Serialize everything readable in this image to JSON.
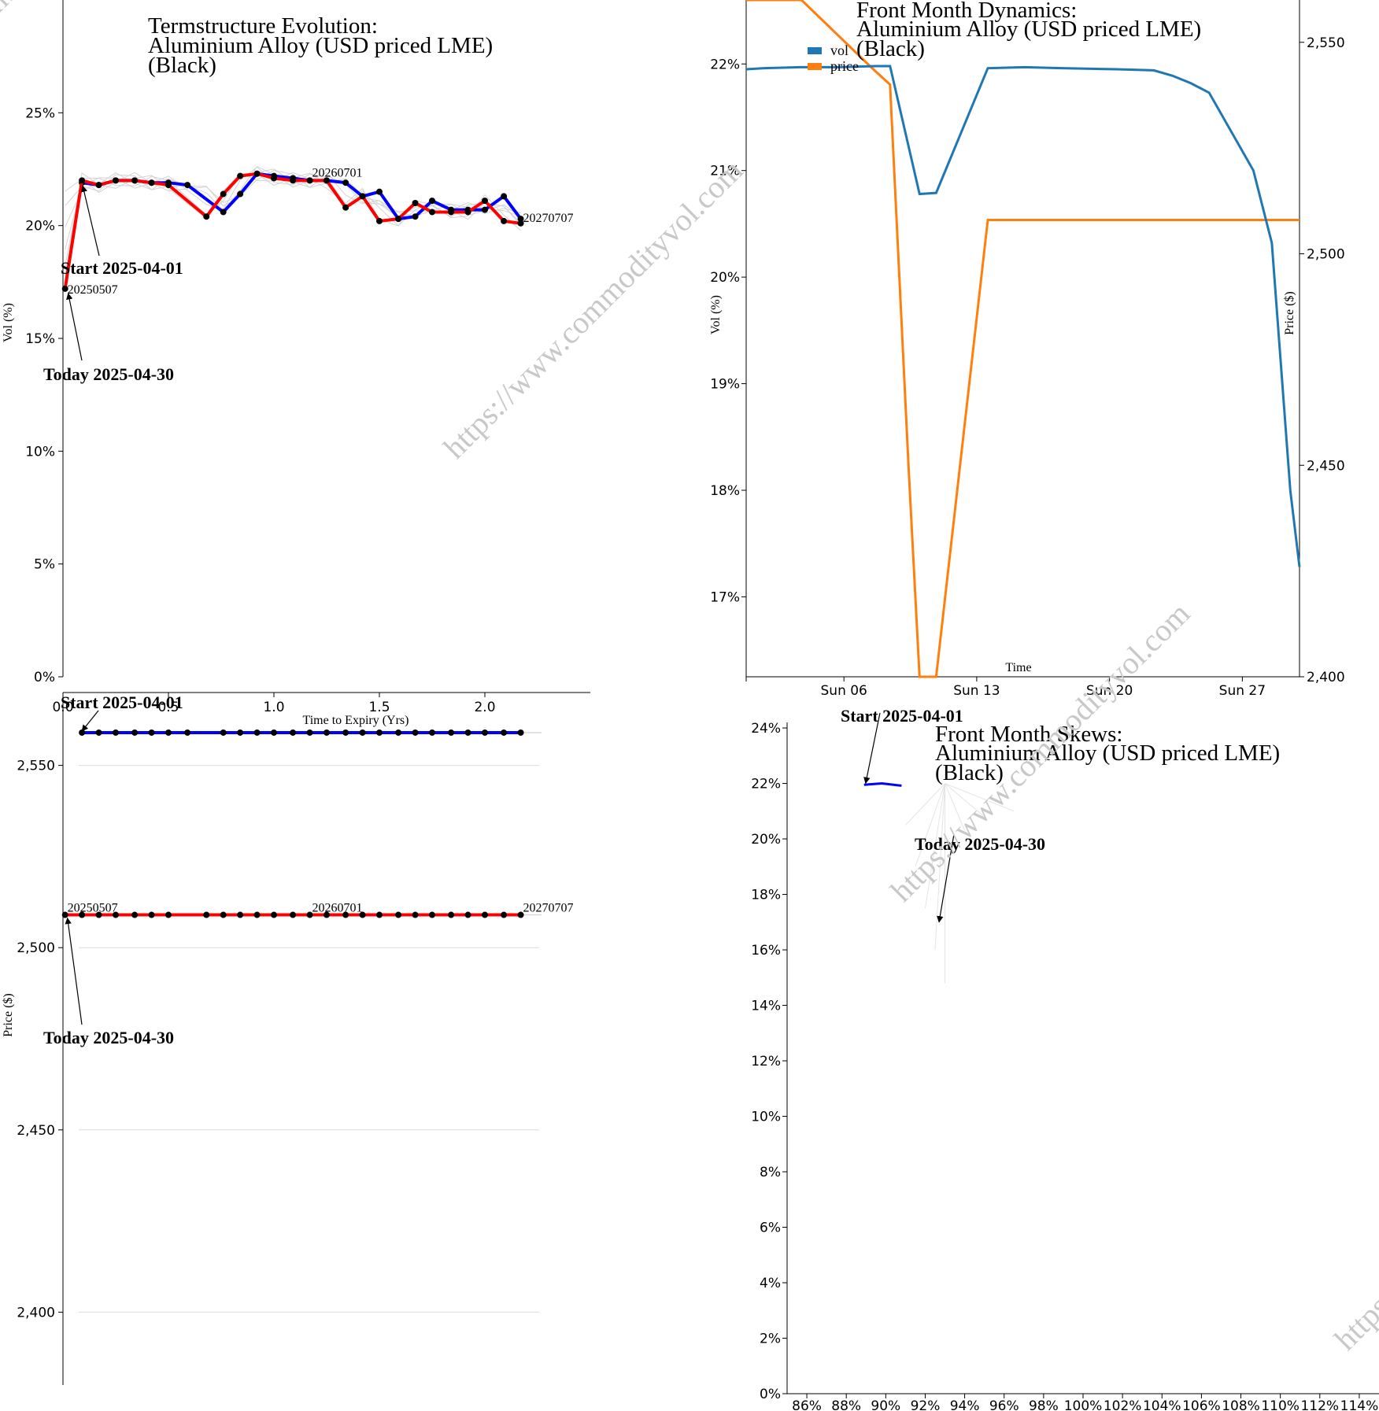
{
  "watermark_text": "https://www.commodityvol.com",
  "chart_data": [
    {
      "id": "termstructure-vol",
      "type": "line",
      "title": [
        "Termstructure Evolution:",
        "Aluminium Alloy (USD priced LME)",
        "(Black)"
      ],
      "xlabel": "Time to Expiry (Yrs)",
      "ylabel": "Vol (%)",
      "xlim": [
        0,
        2.5
      ],
      "ylim": [
        0,
        30
      ],
      "xticks": [
        0.0,
        0.5,
        1.0,
        1.5,
        2.0
      ],
      "xtick_labels": [
        "0.0",
        "0.5",
        "1.0",
        "1.5",
        "2.0"
      ],
      "yticks": [
        0,
        5,
        10,
        15,
        20,
        25
      ],
      "ytick_labels": [
        "0%",
        "5%",
        "10%",
        "15%",
        "20%",
        "25%"
      ],
      "series": [
        {
          "name": "Start 2025-04-01",
          "color": "#0000ff",
          "x": [
            0.09,
            0.17,
            0.25,
            0.34,
            0.42,
            0.5,
            0.59,
            0.76,
            0.84,
            0.92,
            1.0,
            1.09,
            1.17,
            1.25,
            1.34,
            1.42,
            1.5,
            1.59,
            1.67,
            1.75,
            1.84,
            1.92,
            2.0,
            2.09,
            2.17
          ],
          "y": [
            21.9,
            21.8,
            22.0,
            22.0,
            21.9,
            21.9,
            21.8,
            20.6,
            21.4,
            22.3,
            22.2,
            22.1,
            22.0,
            22.0,
            21.9,
            21.3,
            21.5,
            20.3,
            20.4,
            21.1,
            20.7,
            20.7,
            20.7,
            21.3,
            20.3
          ]
        },
        {
          "name": "Today 2025-04-30",
          "color": "#ff0000",
          "x": [
            0.01,
            0.09,
            0.17,
            0.25,
            0.34,
            0.42,
            0.5,
            0.68,
            0.76,
            0.84,
            0.92,
            1.0,
            1.09,
            1.17,
            1.25,
            1.34,
            1.42,
            1.5,
            1.59,
            1.67,
            1.75,
            1.84,
            1.92,
            2.0,
            2.09,
            2.17
          ],
          "y": [
            17.2,
            22.0,
            21.8,
            22.0,
            22.0,
            21.9,
            21.8,
            20.4,
            21.4,
            22.2,
            22.3,
            22.1,
            22.0,
            22.0,
            22.0,
            20.8,
            21.3,
            20.2,
            20.3,
            21.0,
            20.6,
            20.6,
            20.6,
            21.1,
            20.2,
            20.1
          ]
        }
      ],
      "curve_labels": [
        {
          "text": "20250507",
          "x": 0.01,
          "y": 17.2
        },
        {
          "text": "20260701",
          "x": 1.17,
          "y": 22.1
        },
        {
          "text": "20270707",
          "x": 2.17,
          "y": 20.1
        }
      ],
      "annotations": [
        {
          "text": "Start 2025-04-01",
          "target_x": 0.09,
          "target_y": 21.9
        },
        {
          "text": "Today 2025-04-30",
          "target_x": 0.01,
          "target_y": 17.2
        }
      ]
    },
    {
      "id": "front-month-dynamics",
      "type": "line",
      "title": [
        "Front Month Dynamics:",
        "Aluminium Alloy (USD priced LME)",
        "(Black)"
      ],
      "xlabel": "Time",
      "ylabel": "Vol (%)",
      "y2label": "Price ($)",
      "xlim": [
        1,
        31
      ],
      "ylim": [
        16.25,
        22.6
      ],
      "y2lim": [
        2400,
        2560
      ],
      "xticks": [
        6.3,
        13.5,
        20.7,
        27.9
      ],
      "xtick_labels": [
        "Sun 06",
        "Sun 13",
        "Sun 20",
        "Sun 27"
      ],
      "yticks": [
        17,
        18,
        19,
        20,
        21,
        22
      ],
      "ytick_labels": [
        "17%",
        "18%",
        "19%",
        "20%",
        "21%",
        "22%"
      ],
      "y2ticks": [
        2400,
        2450,
        2500,
        2550
      ],
      "y2tick_labels": [
        "2,400",
        "2,450",
        "2,500",
        "2,550"
      ],
      "legend": [
        "vol",
        "price"
      ],
      "series": [
        {
          "name": "vol",
          "color": "#1f77b4",
          "x": [
            1,
            2,
            4,
            6,
            8,
            8.8,
            10.4,
            11.3,
            14.1,
            16.1,
            18.1,
            21.1,
            23.1,
            24.1,
            25.1,
            26.1,
            28.5,
            29.5,
            30.5,
            31
          ],
          "y": [
            21.95,
            21.96,
            21.97,
            21.97,
            21.98,
            21.98,
            20.78,
            20.79,
            21.96,
            21.97,
            21.96,
            21.95,
            21.94,
            21.89,
            21.82,
            21.73,
            21.0,
            20.32,
            18.0,
            17.28
          ]
        },
        {
          "name": "price",
          "color": "#ff7f0e",
          "x": [
            1,
            4,
            7.8,
            8.8,
            9.8,
            10.4,
            11.3,
            14.1,
            31
          ],
          "y": [
            2560,
            2560,
            2544,
            2540,
            2450,
            2400,
            2400,
            2508,
            2508
          ]
        }
      ]
    },
    {
      "id": "termstructure-price",
      "type": "line",
      "title": [],
      "xlabel": "",
      "ylabel": "Price ($)",
      "xlim": [
        0,
        2.5
      ],
      "ylim": [
        2380,
        2570
      ],
      "yticks": [
        2400,
        2450,
        2500,
        2550
      ],
      "ytick_labels": [
        "2,400",
        "2,450",
        "2,500",
        "2,550"
      ],
      "series": [
        {
          "name": "Start 2025-04-01",
          "color": "#0000ff",
          "x": [
            0.09,
            0.17,
            0.25,
            0.34,
            0.42,
            0.5,
            0.59,
            0.76,
            0.84,
            0.92,
            1.0,
            1.09,
            1.17,
            1.25,
            1.34,
            1.42,
            1.5,
            1.59,
            1.67,
            1.75,
            1.84,
            1.92,
            2.0,
            2.09,
            2.17
          ],
          "y": [
            2559,
            2559,
            2559,
            2559,
            2559,
            2559,
            2559,
            2559,
            2559,
            2559,
            2559,
            2559,
            2559,
            2559,
            2559,
            2559,
            2559,
            2559,
            2559,
            2559,
            2559,
            2559,
            2559,
            2559,
            2559
          ]
        },
        {
          "name": "Today 2025-04-30",
          "color": "#ff0000",
          "x": [
            0.01,
            0.09,
            0.17,
            0.25,
            0.34,
            0.42,
            0.5,
            0.68,
            0.76,
            0.84,
            0.92,
            1.0,
            1.09,
            1.17,
            1.25,
            1.34,
            1.42,
            1.5,
            1.59,
            1.67,
            1.75,
            1.84,
            1.92,
            2.0,
            2.09,
            2.17
          ],
          "y": [
            2509,
            2509,
            2509,
            2509,
            2509,
            2509,
            2509,
            2509,
            2509,
            2509,
            2509,
            2509,
            2509,
            2509,
            2509,
            2509,
            2509,
            2509,
            2509,
            2509,
            2509,
            2509,
            2509,
            2509,
            2509,
            2509
          ]
        }
      ],
      "curve_labels": [
        {
          "text": "20250507",
          "x": 0.01,
          "y": 2509
        },
        {
          "text": "20260701",
          "x": 1.17,
          "y": 2509
        },
        {
          "text": "20270707",
          "x": 2.17,
          "y": 2509
        }
      ],
      "annotations": [
        {
          "text": "Start 2025-04-01",
          "target_x": 0.09,
          "target_y": 2559
        },
        {
          "text": "Today 2025-04-30",
          "target_x": 0.01,
          "target_y": 2509
        }
      ]
    },
    {
      "id": "front-month-skews",
      "type": "line",
      "title": [
        "Front Month Skews:",
        "Aluminium Alloy (USD priced LME)",
        "(Black)"
      ],
      "xlim": [
        0.85,
        1.15
      ],
      "ylim": [
        0,
        24.2
      ],
      "xticks": [
        0.86,
        0.88,
        0.9,
        0.92,
        0.94,
        0.96,
        0.98,
        1.0,
        1.02,
        1.04,
        1.06,
        1.08,
        1.1,
        1.12,
        1.14
      ],
      "xtick_labels": [
        "86%",
        "88%",
        "90%",
        "92%",
        "94%",
        "96%",
        "98%",
        "100%",
        "102%",
        "104%",
        "106%",
        "108%",
        "110%",
        "112%",
        "114%"
      ],
      "yticks": [
        0,
        2,
        4,
        6,
        8,
        10,
        12,
        14,
        16,
        18,
        20,
        22,
        24
      ],
      "ytick_labels": [
        "0%",
        "2%",
        "4%",
        "6%",
        "8%",
        "10%",
        "12%",
        "14%",
        "16%",
        "18%",
        "20%",
        "22%",
        "24%"
      ],
      "series": [
        {
          "name": "Start 2025-04-01",
          "color": "#0000ff",
          "x": [
            0.889,
            0.898,
            0.908
          ],
          "y": [
            21.95,
            22.0,
            21.92
          ]
        }
      ],
      "annotations": [
        {
          "text": "Start 2025-04-01",
          "target_x": 0.889,
          "target_y": 21.95
        },
        {
          "text": "Today 2025-04-30",
          "target_x": 0.927,
          "target_y": 17.0
        }
      ]
    }
  ]
}
